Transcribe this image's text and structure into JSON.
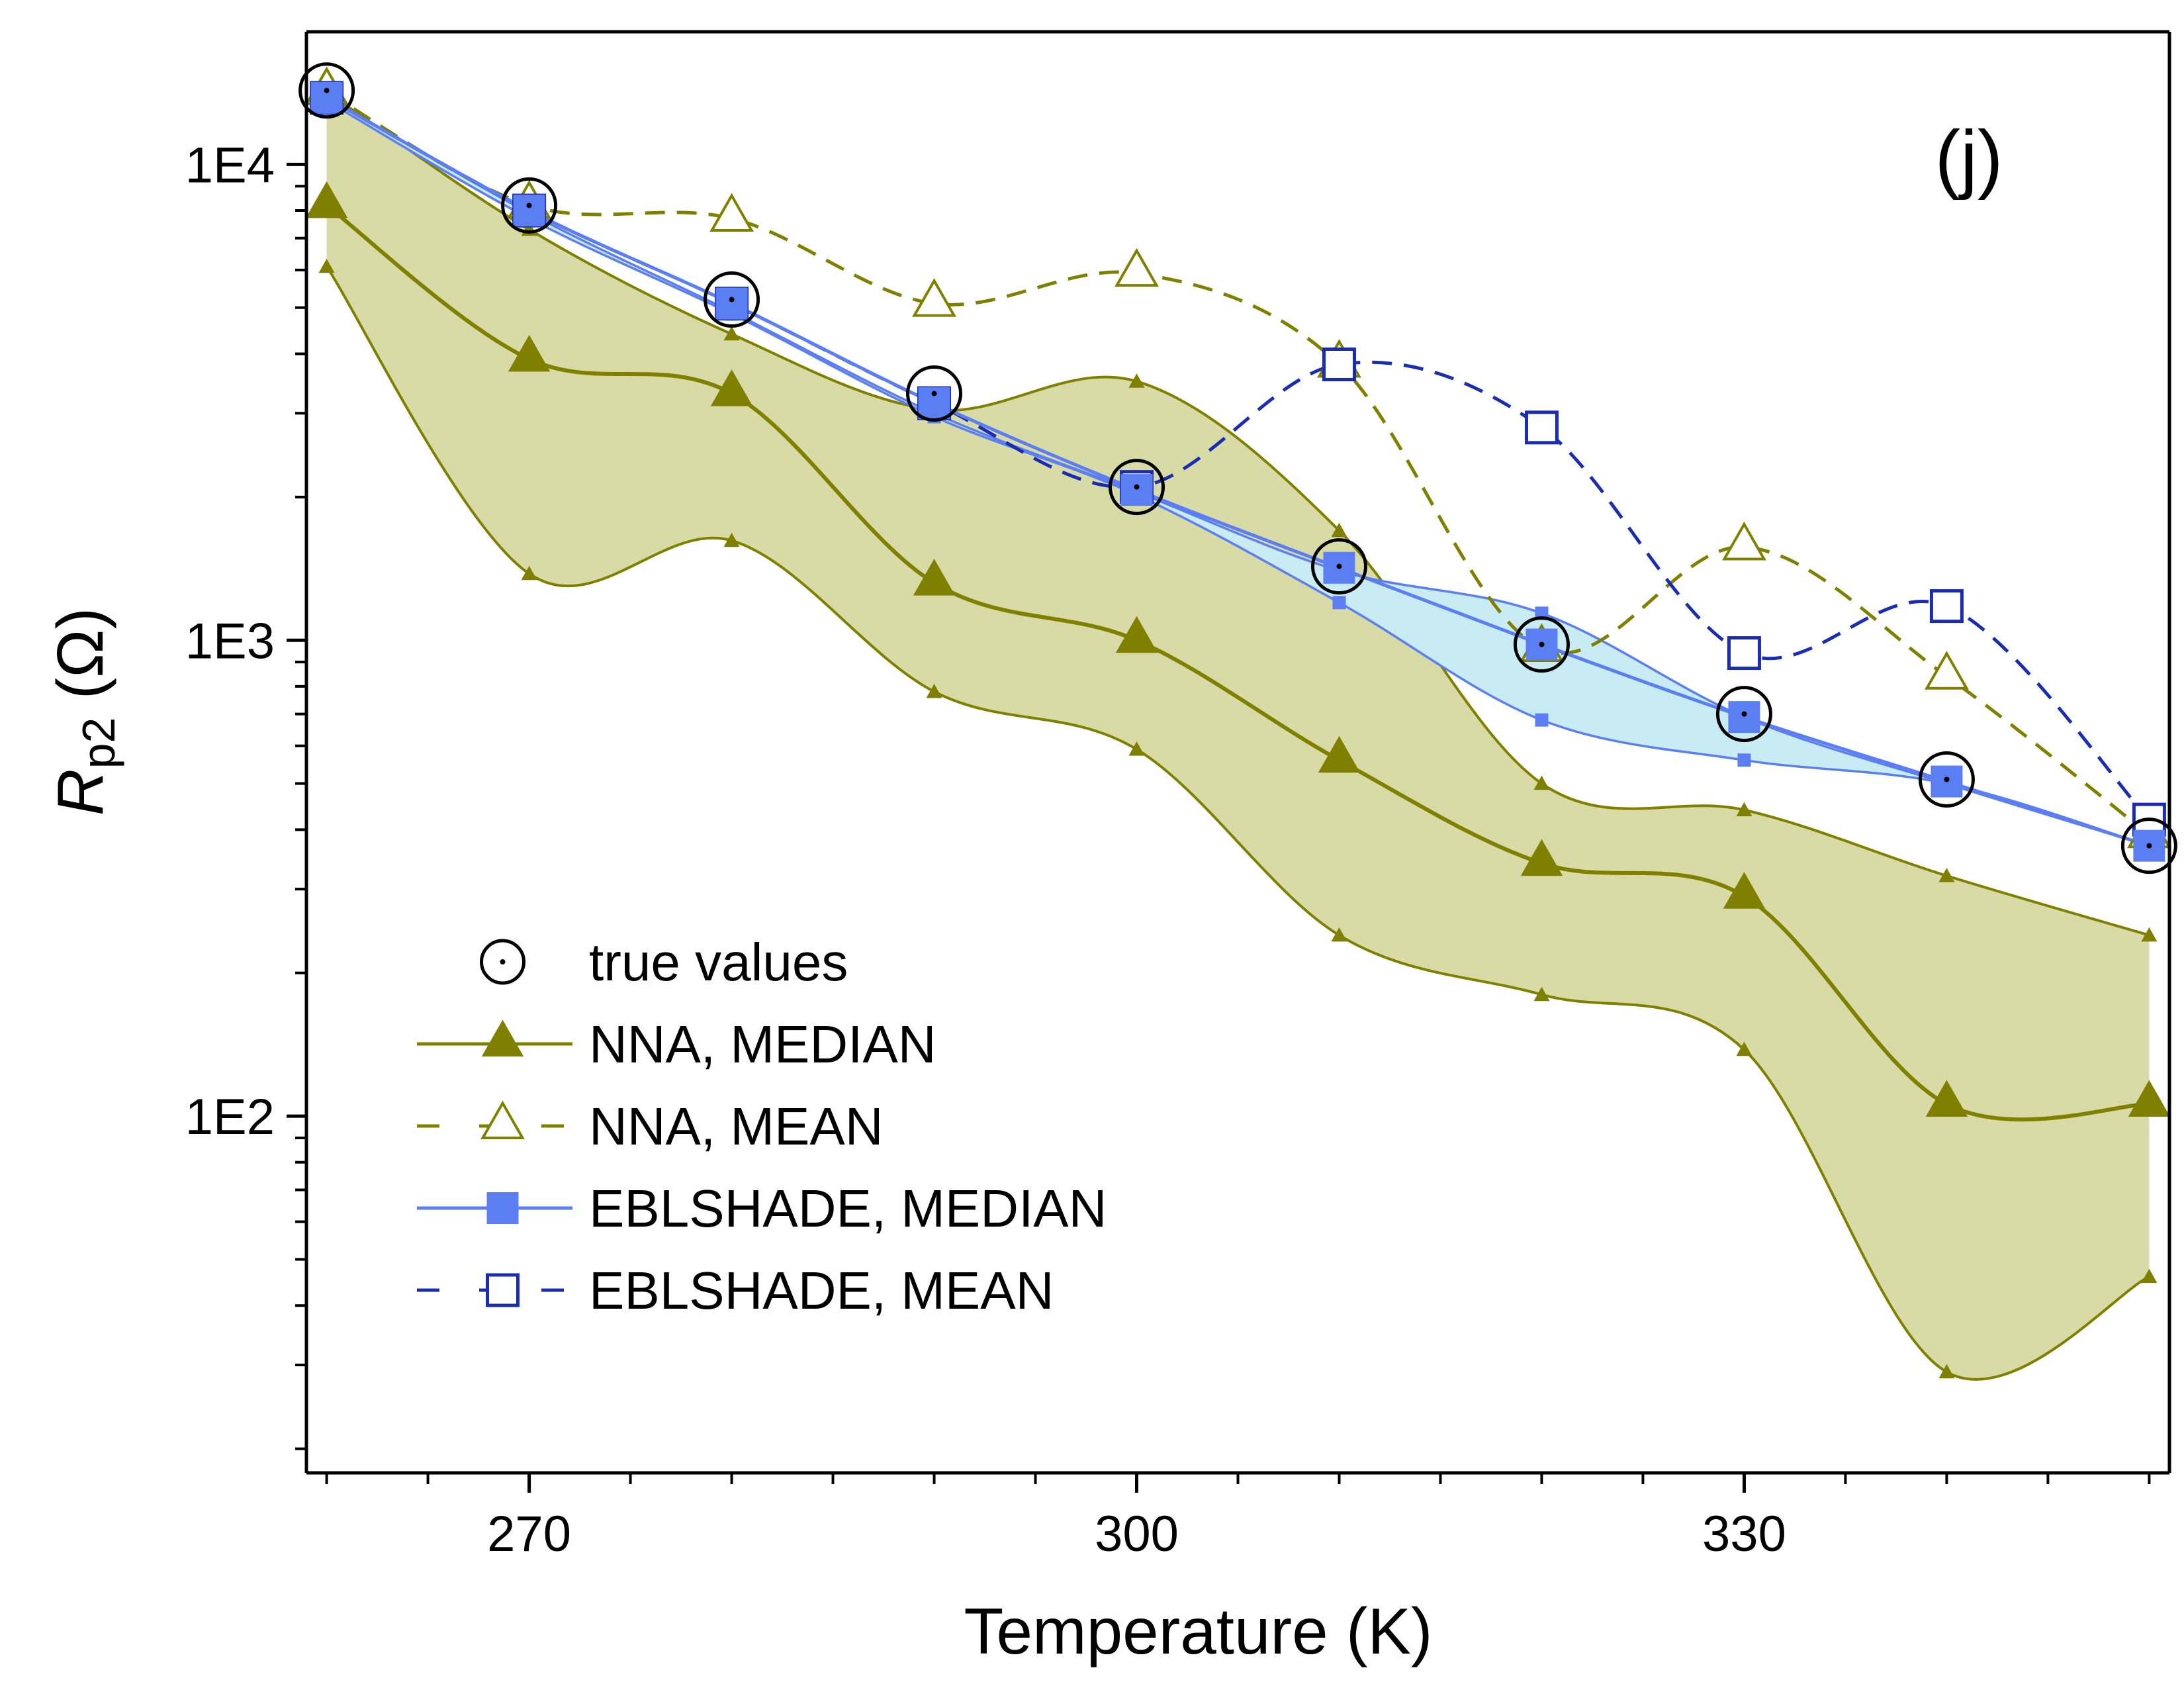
{
  "chart_data": {
    "type": "line",
    "panel_label": "(j)",
    "xlabel": "Temperature (K)",
    "ylabel": {
      "main": "R",
      "subscript": "p2",
      "unit": "(Ω)"
    },
    "x_ticks": [
      270,
      300,
      330
    ],
    "x_tick_labels": [
      "270",
      "300",
      "330"
    ],
    "y_ticks": [
      100,
      1000,
      10000
    ],
    "y_tick_labels": [
      "1E2",
      "1E3",
      "1E4"
    ],
    "x_range": [
      259,
      351
    ],
    "y_range": [
      17.8,
      19000
    ],
    "y_scale": "log",
    "x": [
      260,
      270,
      280,
      290,
      300,
      310,
      320,
      330,
      340,
      350
    ],
    "nna_band": {
      "upper": [
        14200,
        7300,
        4400,
        3050,
        3500,
        1700,
        500,
        440,
        320,
        240
      ],
      "lower": [
        6100,
        1380,
        1620,
        780,
        590,
        240,
        180,
        138,
        29,
        46
      ],
      "color": "#d9dba6"
    },
    "ebl_band": {
      "upper": [
        13900,
        7900,
        4900,
        3000,
        2050,
        1400,
        1140,
        690,
        500,
        370
      ],
      "lower": [
        13600,
        7700,
        4850,
        2950,
        2020,
        1200,
        680,
        560,
        500,
        370
      ],
      "color": "#c9ecf4"
    },
    "series": [
      {
        "name": "true values",
        "marker": "circle-dot",
        "values": [
          14300,
          8200,
          5200,
          3300,
          2100,
          1430,
          980,
          700,
          510,
          370
        ],
        "color": "#000000"
      },
      {
        "name": "NNA, MEDIAN",
        "marker": "triangle-filled",
        "line": "solid",
        "values": [
          8200,
          3900,
          3300,
          1320,
          1000,
          560,
          340,
          290,
          106,
          106
        ],
        "color": "#808000"
      },
      {
        "name": "NNA, MEAN",
        "marker": "triangle-open",
        "line": "dashed",
        "values": [
          14200,
          8200,
          7700,
          5100,
          5900,
          3800,
          960,
          1570,
          840,
          390
        ],
        "color": "#808000"
      },
      {
        "name": "EBLSHADE, MEDIAN",
        "marker": "square-filled",
        "line": "solid",
        "values": [
          13800,
          8000,
          5100,
          3150,
          2070,
          1420,
          980,
          690,
          505,
          370
        ],
        "color": "#5b7ef2"
      },
      {
        "name": "EBLSHADE, MEAN",
        "marker": "square-open",
        "line": "dashed",
        "values": [
          13800,
          8000,
          5100,
          3150,
          2100,
          3800,
          2800,
          940,
          1180,
          420
        ],
        "color": "#1a2cb0"
      }
    ],
    "legend_position": "bottom-left",
    "grid": false
  }
}
